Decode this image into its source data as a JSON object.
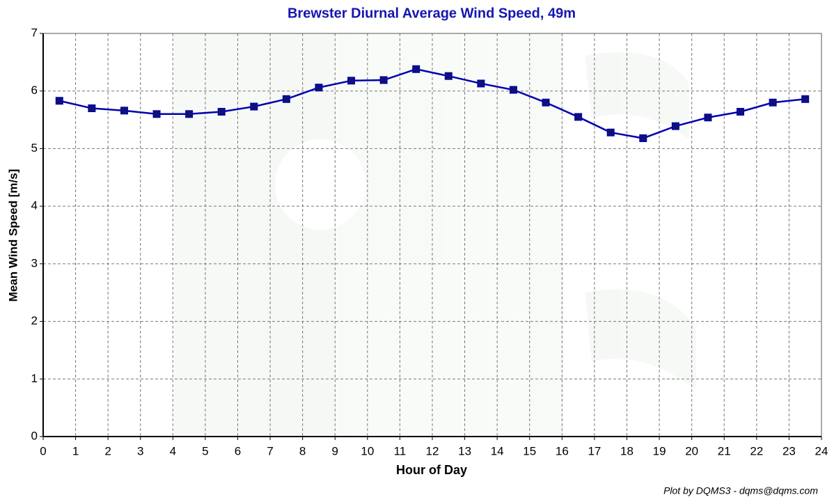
{
  "chart_data": {
    "type": "line",
    "title": "Brewster Diurnal Average Wind Speed, 49m",
    "x_label": "Hour of Day",
    "y_label": "Mean Wind Speed [m/s]",
    "credit": "Plot by DQMS3 - dqms@dqms.com",
    "x": [
      0.5,
      1.5,
      2.5,
      3.5,
      4.5,
      5.5,
      6.5,
      7.5,
      8.5,
      9.5,
      10.5,
      11.5,
      12.5,
      13.5,
      14.5,
      15.5,
      16.5,
      17.5,
      18.5,
      19.5,
      20.5,
      21.5,
      22.5,
      23.5
    ],
    "series": [
      {
        "color": "#0000b0",
        "marker_color": "#10107a",
        "values": [
          5.83,
          5.7,
          5.66,
          5.6,
          5.6,
          5.64,
          5.73,
          5.86,
          6.06,
          6.18,
          6.19,
          6.38,
          6.26,
          6.13,
          6.02,
          5.8,
          5.55,
          5.28,
          5.18,
          5.39,
          5.54,
          5.64,
          5.8,
          5.86
        ]
      }
    ],
    "xlim": [
      0,
      24
    ],
    "xticks": [
      0,
      1,
      2,
      3,
      4,
      5,
      6,
      7,
      8,
      9,
      10,
      11,
      12,
      13,
      14,
      15,
      16,
      17,
      18,
      19,
      20,
      21,
      22,
      23,
      24
    ],
    "ylim": [
      0,
      7
    ],
    "yticks": [
      0,
      1,
      2,
      3,
      4,
      5,
      6,
      7
    ],
    "grid": true
  }
}
